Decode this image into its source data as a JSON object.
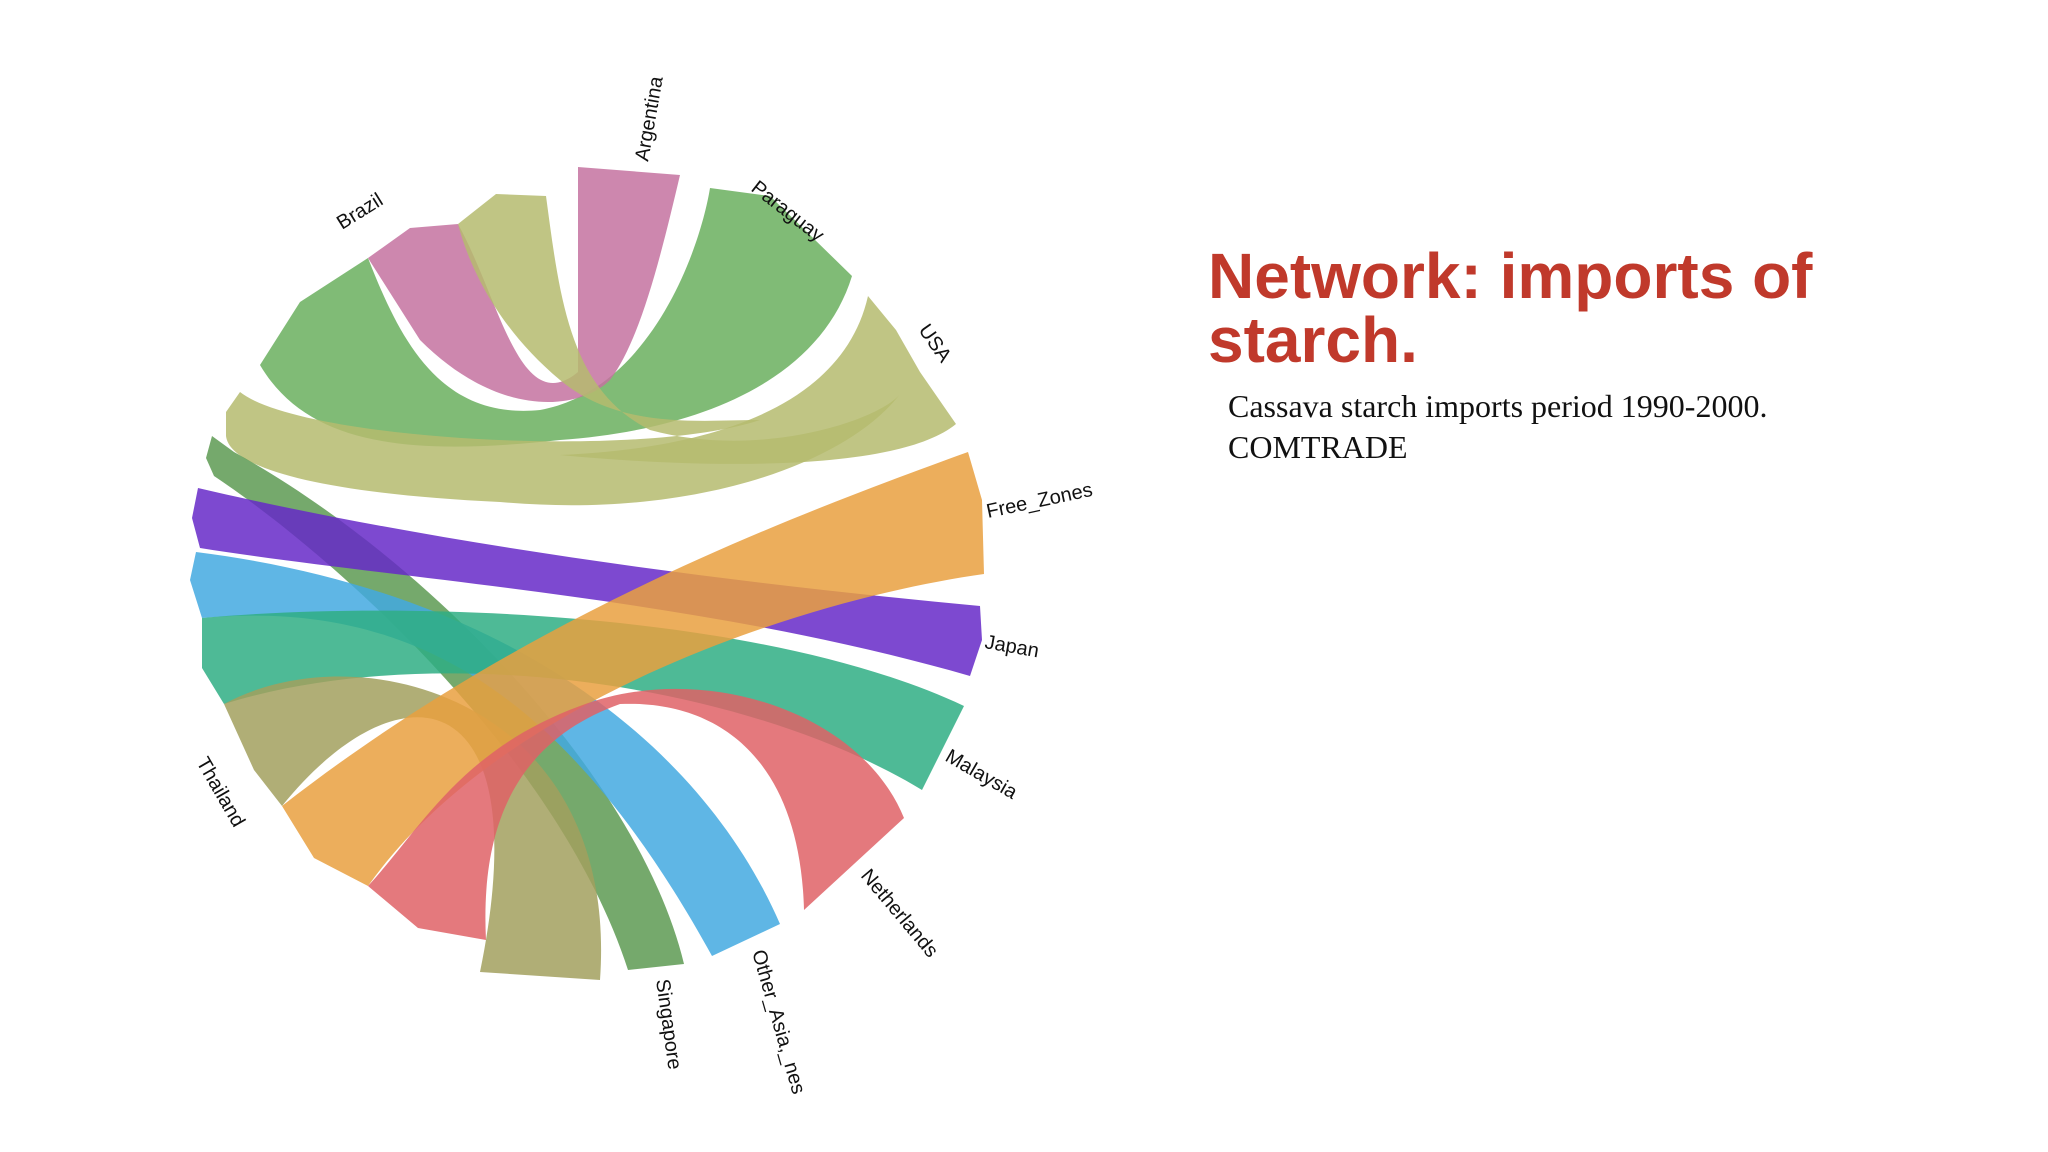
{
  "slide": {
    "title": "Network: imports of starch.",
    "subtitle_line1": "Cassava starch imports period 1990-2000.",
    "subtitle_line2": "COMTRADE"
  },
  "network": {
    "type": "chord",
    "nodes": [
      {
        "name": "Argentina"
      },
      {
        "name": "Paraguay"
      },
      {
        "name": "USA"
      },
      {
        "name": "Free_Zones"
      },
      {
        "name": "Japan"
      },
      {
        "name": "Malaysia"
      },
      {
        "name": "Netherlands"
      },
      {
        "name": "Other_Asia_nes_label",
        "label": "Other_Asia,_nes"
      },
      {
        "name": "Singapore"
      },
      {
        "name": "Thailand"
      },
      {
        "name": "Brazil"
      }
    ],
    "links": [
      {
        "source": "Brazil",
        "target": "Paraguay",
        "color": "#6aaf5e"
      },
      {
        "source": "Brazil",
        "target": "Argentina",
        "color": "#c472a0"
      },
      {
        "source": "Brazil",
        "target": "USA",
        "color": "#b5bb6e"
      },
      {
        "source": "Brazil",
        "target": "Japan",
        "color": "#6629c8"
      },
      {
        "source": "Brazil",
        "target": "Singapore",
        "color": "#5d9a52"
      },
      {
        "source": "Thailand",
        "target": "Other_Asia_nes_label",
        "color": "#43a9e0"
      },
      {
        "source": "Thailand",
        "target": "Malaysia",
        "color": "#2fae84"
      },
      {
        "source": "Thailand",
        "target": "Singapore",
        "color": "#a2a05e"
      },
      {
        "source": "Thailand",
        "target": "Free_Zones",
        "color": "#e9a040"
      },
      {
        "source": "Thailand",
        "target": "Netherlands",
        "color": "#df6266"
      }
    ]
  }
}
